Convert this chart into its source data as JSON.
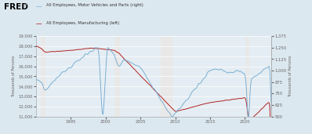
{
  "legend_lines": [
    {
      "label": "All Employees, Motor Vehicles and Parts (right)",
      "color": "#7bafd4"
    },
    {
      "label": "All Employees, Manufacturing (left)",
      "color": "#b22222"
    }
  ],
  "ylabel_left": "Thousands of Persons",
  "ylabel_right": "Thousands of Persons",
  "ylim_left": [
    11000,
    19000
  ],
  "ylim_right": [
    500,
    1375
  ],
  "yticks_left": [
    11000,
    12000,
    13000,
    14000,
    15000,
    16000,
    17000,
    18000,
    19000
  ],
  "yticks_right": [
    500,
    625,
    750,
    875,
    1000,
    1125,
    1250,
    1375
  ],
  "xlim": [
    1990.0,
    2023.8
  ],
  "xticks": [
    1995,
    2000,
    2005,
    2010,
    2015,
    2020
  ],
  "recession_bands": [
    [
      1990.75,
      1991.25
    ],
    [
      2001.25,
      2001.92
    ],
    [
      2007.92,
      2009.5
    ],
    [
      2020.17,
      2020.5
    ]
  ],
  "header_bg": "#dce8f0",
  "plot_bg_color": "#e4edf3",
  "grid_color": "#ffffff",
  "line_color_blue": "#7bafd4",
  "line_color_red": "#b22222",
  "recession_color": "#e8e8e8",
  "fred_color": "#000000",
  "tick_color": "#666666"
}
